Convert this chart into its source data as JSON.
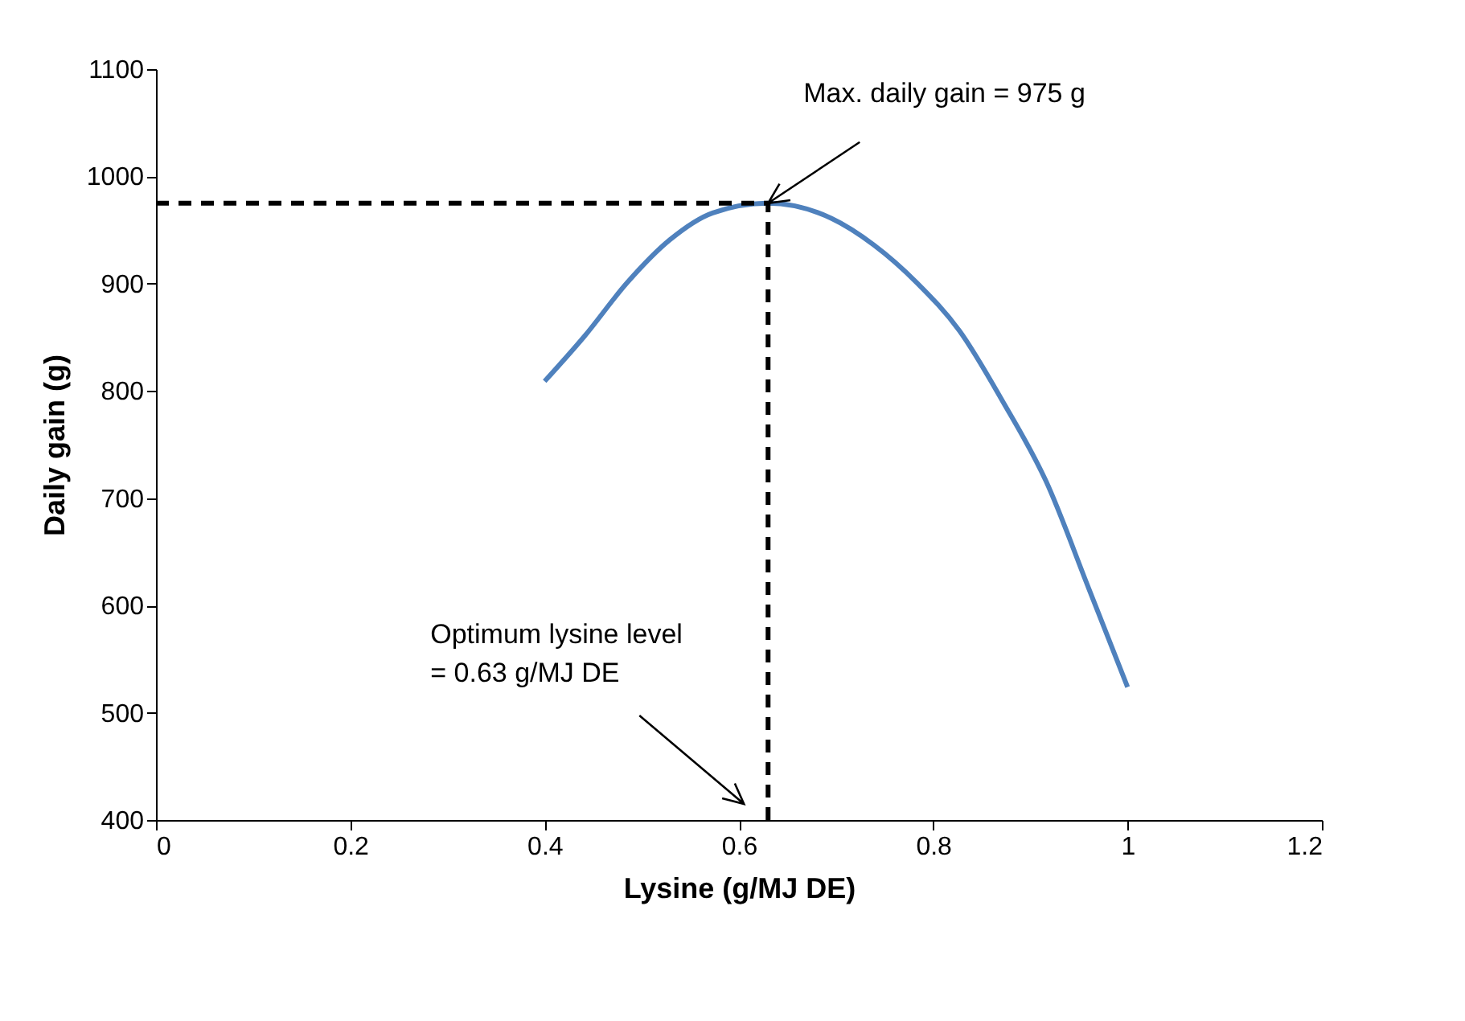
{
  "chart_data": {
    "type": "line",
    "xlabel": "Lysine (g/MJ DE)",
    "ylabel": "Daily gain (g)",
    "xlim": [
      0,
      1.2
    ],
    "xticks": [
      0,
      0.2,
      0.4,
      0.6,
      0.8,
      1,
      1.2
    ],
    "ylim": [
      400,
      1100
    ],
    "yticks": [
      400,
      500,
      600,
      700,
      800,
      900,
      1000,
      1100
    ],
    "grid": false,
    "marker": "none",
    "line_style": "solid",
    "series": [
      {
        "color": "#4f81bd",
        "x": [
          0.4,
          0.441,
          0.485,
          0.529,
          0.573,
          0.63,
          0.695,
          0.739,
          0.783,
          0.827,
          0.871,
          0.916,
          0.96,
          1.0
        ],
        "values": [
          809,
          851,
          901,
          941,
          966,
          975,
          961,
          936,
          901,
          856,
          791,
          716,
          616,
          524
        ]
      }
    ],
    "ref_lines": [
      {
        "axis": "y",
        "value": 975,
        "color": "#000000",
        "line_style": "dashed"
      },
      {
        "axis": "x",
        "value": 0.63,
        "color": "#000000",
        "line_style": "dashed"
      }
    ],
    "annotations": [
      "Max. daily gain = 975 g",
      "Optimum lysine level\n= 0.63 g/MJ DE"
    ]
  }
}
